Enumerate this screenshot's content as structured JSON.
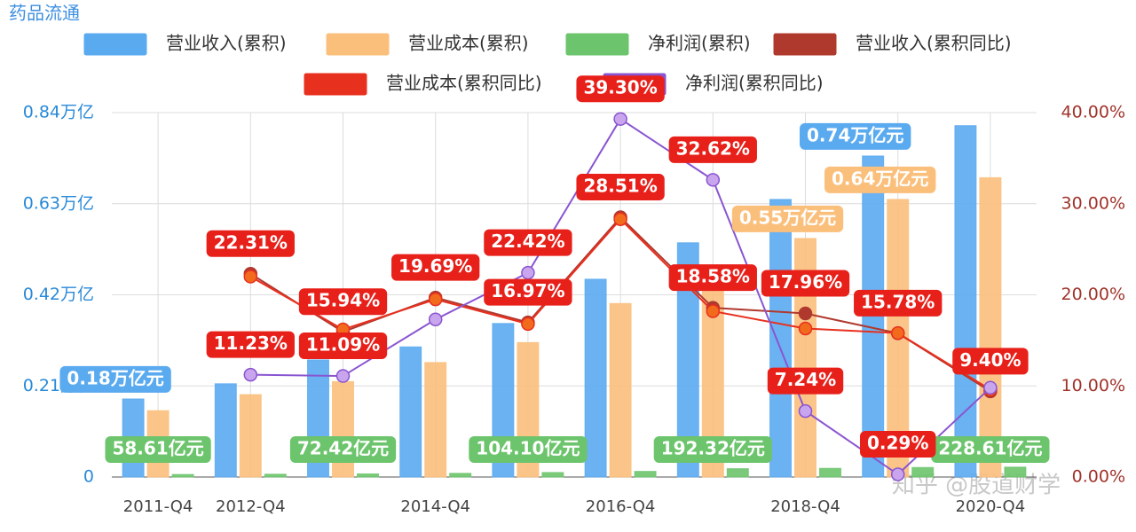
{
  "chart_data": {
    "type": "combo",
    "title": "药品流通",
    "watermark": "知乎 @股道财学",
    "categories": [
      "2011-Q4",
      "2012-Q4",
      null,
      "2014-Q4",
      null,
      "2016-Q4",
      null,
      "2018-Q4",
      null,
      "2020-Q4"
    ],
    "ylim": [
      0,
      0.84
    ],
    "yticks": [
      0,
      {
        "value": 0.21,
        "label": "0.21万亿"
      },
      {
        "value": 0.42,
        "label": "0.42万亿"
      },
      {
        "value": 0.63,
        "label": "0.63万亿"
      },
      {
        "value": 0.84,
        "label": "0.84万亿"
      }
    ],
    "y2lim": [
      0,
      40
    ],
    "y2ticks": [
      {
        "value": 0,
        "label": "0.00%"
      },
      {
        "value": 10,
        "label": "10.00%"
      },
      {
        "value": 20,
        "label": "20.00%"
      },
      {
        "value": 30,
        "label": "30.00%"
      },
      {
        "value": 40,
        "label": "40.00%"
      }
    ],
    "grid": true,
    "series": [
      {
        "name": "营业收入(累积)",
        "type": "bar",
        "color": "#5aaaf0",
        "values": [
          0.18,
          0.215,
          0.27,
          0.3,
          0.354,
          0.456,
          0.54,
          0.64,
          0.74,
          0.81
        ],
        "value_labels": [
          "0.18万亿元",
          null,
          null,
          null,
          null,
          null,
          null,
          null,
          "0.74万亿元",
          null
        ]
      },
      {
        "name": "营业成本(累积)",
        "type": "bar",
        "color": "#fbbf7c",
        "values": [
          0.153,
          0.19,
          0.22,
          0.264,
          0.31,
          0.4,
          0.47,
          0.55,
          0.64,
          0.69
        ],
        "value_labels": [
          null,
          null,
          null,
          null,
          null,
          null,
          null,
          "0.55万亿元",
          "0.64万亿元",
          null
        ]
      },
      {
        "name": "净利润(累积)",
        "type": "bar",
        "color": "#6cc46c",
        "values": [
          0.005861,
          0.0065,
          0.007242,
          0.0085,
          0.01041,
          0.013,
          0.019232,
          0.02,
          0.022,
          0.022861
        ],
        "value_labels": [
          "58.61亿元",
          null,
          "72.42亿元",
          null,
          "104.10亿元",
          null,
          "192.32亿元",
          null,
          null,
          "228.61亿元"
        ]
      },
      {
        "name": "营业收入(累积同比)",
        "type": "line",
        "axis": "y2",
        "color": "#b0392e",
        "values": [
          null,
          22.31,
          15.94,
          19.69,
          16.97,
          28.51,
          18.58,
          17.96,
          15.78,
          9.4
        ],
        "value_labels": [
          null,
          "22.31%",
          "15.94%",
          "19.69%",
          "16.97%",
          "28.51%",
          "18.58%",
          "17.96%",
          "15.78%",
          "9.40%"
        ]
      },
      {
        "name": "营业成本(累积同比)",
        "type": "line",
        "axis": "y2",
        "color": "#e8301f",
        "values": [
          null,
          22.0,
          16.2,
          19.5,
          16.8,
          28.3,
          18.2,
          16.3,
          15.8,
          9.6
        ]
      },
      {
        "name": "净利润(累积同比)",
        "type": "line",
        "axis": "y2",
        "color": "#8a55d0",
        "values": [
          null,
          11.23,
          11.09,
          17.3,
          22.42,
          39.3,
          32.62,
          7.24,
          0.29,
          9.8
        ],
        "value_labels": [
          null,
          "11.23%",
          "11.09%",
          null,
          "22.42%",
          "39.30%",
          "32.62%",
          "7.24%",
          "0.29%",
          null
        ]
      }
    ]
  }
}
